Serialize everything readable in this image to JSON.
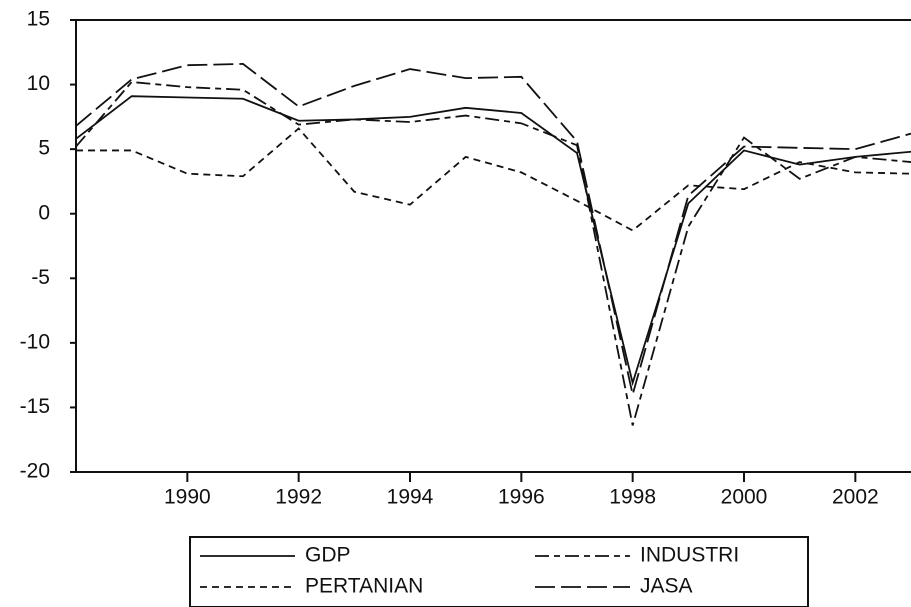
{
  "chart_data": {
    "type": "line",
    "x": [
      1988,
      1989,
      1990,
      1991,
      1992,
      1993,
      1994,
      1995,
      1996,
      1997,
      1998,
      1999,
      2000,
      2001,
      2002,
      2003
    ],
    "series": [
      {
        "name": "GDP",
        "color": "#111111",
        "dash": "none",
        "values": [
          5.8,
          9.1,
          9.0,
          8.9,
          7.2,
          7.3,
          7.5,
          8.2,
          7.8,
          4.7,
          -13.1,
          0.8,
          4.9,
          3.8,
          4.4,
          4.8
        ]
      },
      {
        "name": "INDUSTRI",
        "color": "#111111",
        "dash": "14 5 6 5",
        "values": [
          5.2,
          10.2,
          9.8,
          9.6,
          6.9,
          7.3,
          7.1,
          7.6,
          7.0,
          5.3,
          -16.4,
          -1.0,
          5.9,
          2.7,
          4.4,
          4.0
        ]
      },
      {
        "name": "PERTANIAN",
        "color": "#111111",
        "dash": "7 5",
        "values": [
          4.9,
          4.9,
          3.1,
          2.9,
          6.6,
          1.7,
          0.7,
          4.4,
          3.2,
          1.0,
          -1.3,
          2.2,
          1.9,
          4.0,
          3.2,
          3.1
        ]
      },
      {
        "name": "JASA",
        "color": "#111111",
        "dash": "20 6",
        "values": [
          6.8,
          10.4,
          11.5,
          11.6,
          8.3,
          9.9,
          11.2,
          10.5,
          10.6,
          5.6,
          -14.0,
          1.4,
          5.2,
          5.1,
          5.0,
          6.2
        ]
      }
    ],
    "xlim": [
      1988,
      2003
    ],
    "xticks": [
      1990,
      1992,
      1994,
      1996,
      1998,
      2000,
      2002
    ],
    "ylim": [
      -20,
      15
    ],
    "yticks": [
      -20,
      -15,
      -10,
      -5,
      0,
      5,
      10,
      15
    ],
    "legend": "bottom"
  }
}
